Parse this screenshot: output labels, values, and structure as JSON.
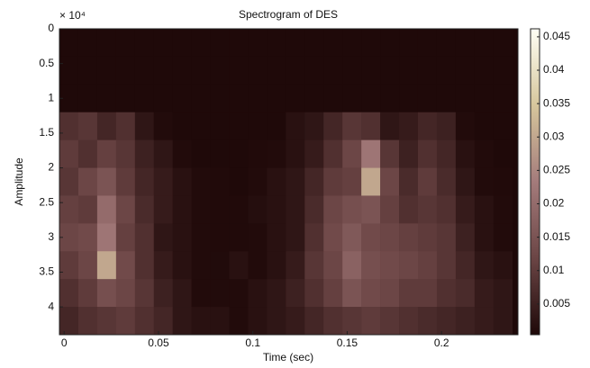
{
  "chart_data": {
    "type": "heatmap",
    "title": "Spectrogram of DES",
    "x_label": "Time (sec)",
    "y_label": "Amplitude",
    "y_scale_label": "× 10⁴",
    "x": [
      0.0025,
      0.0125,
      0.0225,
      0.0325,
      0.0425,
      0.0525,
      0.0625,
      0.0725,
      0.0825,
      0.0925,
      0.1025,
      0.1125,
      0.1225,
      0.1325,
      0.1425,
      0.1525,
      0.1625,
      0.1725,
      0.1825,
      0.1925,
      0.2025,
      0.2125,
      0.2225,
      0.2325
    ],
    "y": [
      2000,
      6000,
      10000,
      14000,
      18000,
      22000,
      26000,
      30000,
      34000,
      38000,
      42000
    ],
    "values": [
      [
        0.0005,
        0.0005,
        0.0005,
        0.0005,
        0.0005,
        0.0005,
        0.0005,
        0.0005,
        0.0005,
        0.0005,
        0.0005,
        0.0005,
        0.0005,
        0.0005,
        0.0005,
        0.0005,
        0.0005,
        0.0005,
        0.0005,
        0.0005,
        0.0005,
        0.0005,
        0.0005,
        0.0005
      ],
      [
        0.0005,
        0.0005,
        0.0005,
        0.0005,
        0.0005,
        0.0005,
        0.0005,
        0.0005,
        0.0005,
        0.0005,
        0.0005,
        0.0005,
        0.0005,
        0.0005,
        0.0005,
        0.0005,
        0.0005,
        0.0005,
        0.0005,
        0.0005,
        0.0005,
        0.0005,
        0.0005,
        0.0005
      ],
      [
        0.0006,
        0.0006,
        0.0006,
        0.0006,
        0.0006,
        0.0006,
        0.0006,
        0.0006,
        0.0006,
        0.0006,
        0.0006,
        0.0006,
        0.0006,
        0.0006,
        0.0006,
        0.0006,
        0.0006,
        0.0006,
        0.0006,
        0.0006,
        0.0006,
        0.0006,
        0.0006,
        0.0006
      ],
      [
        0.008,
        0.009,
        0.006,
        0.008,
        0.003,
        0.001,
        0.0006,
        0.0006,
        0.0006,
        0.0006,
        0.0006,
        0.0006,
        0.002,
        0.003,
        0.006,
        0.009,
        0.008,
        0.003,
        0.004,
        0.006,
        0.005,
        0.001,
        0.0006,
        0.0006
      ],
      [
        0.01,
        0.008,
        0.011,
        0.009,
        0.005,
        0.003,
        0.001,
        0.0006,
        0.0006,
        0.0006,
        0.0008,
        0.001,
        0.002,
        0.004,
        0.008,
        0.012,
        0.022,
        0.009,
        0.005,
        0.008,
        0.006,
        0.002,
        0.001,
        0.0006
      ],
      [
        0.009,
        0.012,
        0.015,
        0.01,
        0.006,
        0.004,
        0.002,
        0.001,
        0.0008,
        0.0006,
        0.001,
        0.002,
        0.003,
        0.006,
        0.01,
        0.011,
        0.03,
        0.012,
        0.007,
        0.01,
        0.007,
        0.003,
        0.001,
        0.0008
      ],
      [
        0.011,
        0.01,
        0.02,
        0.012,
        0.007,
        0.004,
        0.002,
        0.001,
        0.0008,
        0.0008,
        0.0015,
        0.002,
        0.003,
        0.007,
        0.012,
        0.014,
        0.015,
        0.011,
        0.008,
        0.009,
        0.008,
        0.004,
        0.002,
        0.001
      ],
      [
        0.012,
        0.013,
        0.022,
        0.011,
        0.008,
        0.003,
        0.002,
        0.001,
        0.0008,
        0.0008,
        0.001,
        0.002,
        0.003,
        0.008,
        0.013,
        0.016,
        0.013,
        0.012,
        0.011,
        0.01,
        0.009,
        0.005,
        0.002,
        0.001
      ],
      [
        0.01,
        0.012,
        0.03,
        0.013,
        0.008,
        0.004,
        0.002,
        0.001,
        0.0009,
        0.002,
        0.001,
        0.002,
        0.004,
        0.009,
        0.012,
        0.018,
        0.014,
        0.013,
        0.012,
        0.011,
        0.009,
        0.006,
        0.003,
        0.002
      ],
      [
        0.008,
        0.01,
        0.014,
        0.012,
        0.009,
        0.005,
        0.003,
        0.001,
        0.001,
        0.001,
        0.002,
        0.003,
        0.005,
        0.008,
        0.011,
        0.015,
        0.013,
        0.012,
        0.01,
        0.01,
        0.008,
        0.007,
        0.004,
        0.003
      ],
      [
        0.006,
        0.008,
        0.009,
        0.01,
        0.008,
        0.006,
        0.003,
        0.002,
        0.002,
        0.001,
        0.002,
        0.003,
        0.004,
        0.006,
        0.008,
        0.009,
        0.01,
        0.009,
        0.008,
        0.007,
        0.006,
        0.005,
        0.004,
        0.003
      ]
    ],
    "xlim": [
      -0.0025,
      0.2405
    ],
    "xticks": [
      0,
      0.05,
      0.1,
      0.15,
      0.2
    ],
    "ylim": [
      0,
      44000
    ],
    "y_reversed": true,
    "yticks": [
      0,
      {
        "value": 5000,
        "label": "0.5"
      },
      {
        "value": 10000,
        "label": "1"
      },
      {
        "value": 15000,
        "label": "1.5"
      },
      {
        "value": 20000,
        "label": "2"
      },
      {
        "value": 25000,
        "label": "2.5"
      },
      {
        "value": 30000,
        "label": "3"
      },
      {
        "value": 35000,
        "label": "3.5"
      },
      {
        "value": 40000,
        "label": "4"
      }
    ],
    "clim": [
      0.0004,
      0.0462
    ],
    "cticks": [
      0.005,
      0.01,
      0.015,
      0.02,
      0.025,
      0.03,
      0.035,
      0.04,
      0.045
    ],
    "colormap": [
      "#1e0808",
      "#6b4545",
      "#a47b7b",
      "#d6c69c",
      "#fffff5"
    ]
  }
}
